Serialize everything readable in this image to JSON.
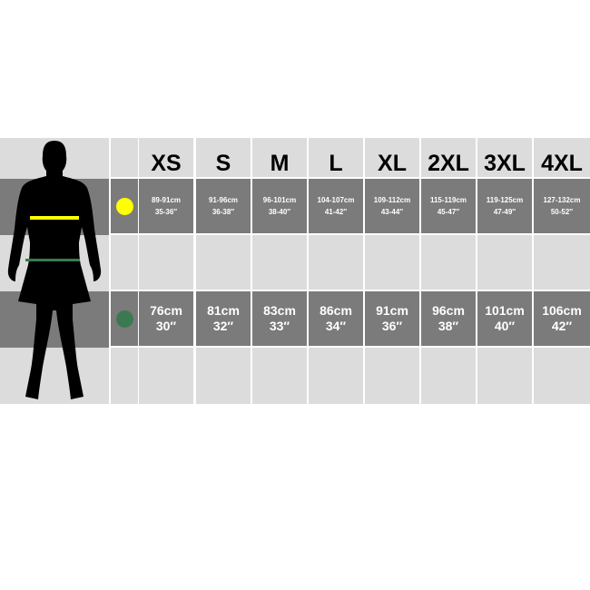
{
  "sizes": [
    "XS",
    "S",
    "M",
    "L",
    "XL",
    "2XL",
    "3XL",
    "4XL"
  ],
  "chest": {
    "indicator_color": "#ffff00",
    "cm": [
      "89-91cm",
      "91-96cm",
      "96-101cm",
      "104-107cm",
      "109-112cm",
      "115-119cm",
      "119-125cm",
      "127-132cm"
    ],
    "inches": [
      "35-36″",
      "36-38″",
      "38-40″",
      "41-42″",
      "43-44″",
      "45-47″",
      "47-49″",
      "50-52″"
    ]
  },
  "waist": {
    "indicator_color": "#3b7a50",
    "cm": [
      "76cm",
      "81cm",
      "83cm",
      "86cm",
      "91cm",
      "96cm",
      "101cm",
      "106cm"
    ],
    "inches": [
      "30″",
      "32″",
      "33″",
      "34″",
      "36″",
      "38″",
      "40″",
      "42″"
    ]
  },
  "colors": {
    "light": "#dcdcdc",
    "dark": "#7b7b7b"
  }
}
